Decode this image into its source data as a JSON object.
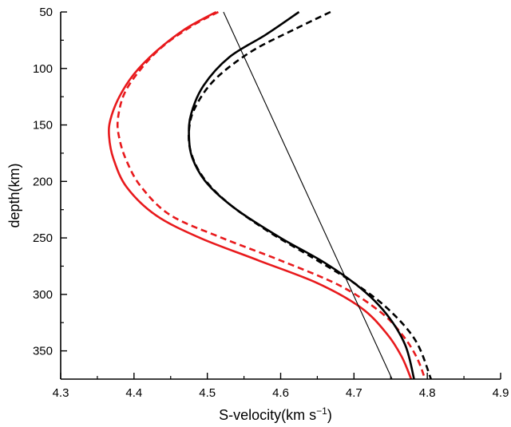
{
  "chart_data": {
    "type": "line",
    "xlabel": "S-velocity(km s",
    "xlabel_sup": "−1",
    "xlabel_end": ")",
    "ylabel": "depth(km)",
    "xlim": [
      4.3,
      4.9
    ],
    "ylim": [
      50,
      375
    ],
    "y_inverted": true,
    "grid": false,
    "x_ticks": [
      4.3,
      4.4,
      4.5,
      4.6,
      4.7,
      4.8,
      4.9
    ],
    "x_tick_labels": [
      "4.3",
      "4.4",
      "4.5",
      "4.6",
      "4.7",
      "4.8",
      "4.9"
    ],
    "y_ticks": [
      50,
      100,
      150,
      200,
      250,
      300,
      350
    ],
    "y_tick_labels": [
      "50",
      "100",
      "150",
      "200",
      "250",
      "300",
      "350"
    ],
    "series": [
      {
        "color": "#e8191c",
        "style": "solid",
        "width": 2.6,
        "points": [
          [
            4.512,
            50
          ],
          [
            4.47,
            65
          ],
          [
            4.43,
            85
          ],
          [
            4.4,
            105
          ],
          [
            4.38,
            125
          ],
          [
            4.368,
            145
          ],
          [
            4.366,
            160
          ],
          [
            4.372,
            180
          ],
          [
            4.39,
            205
          ],
          [
            4.43,
            230
          ],
          [
            4.49,
            250
          ],
          [
            4.57,
            270
          ],
          [
            4.65,
            290
          ],
          [
            4.71,
            312
          ],
          [
            4.745,
            335
          ],
          [
            4.765,
            355
          ],
          [
            4.778,
            375
          ]
        ]
      },
      {
        "color": "#e8191c",
        "style": "dashed",
        "width": 2.6,
        "points": [
          [
            4.515,
            50
          ],
          [
            4.48,
            62
          ],
          [
            4.44,
            80
          ],
          [
            4.41,
            100
          ],
          [
            4.387,
            122
          ],
          [
            4.378,
            145
          ],
          [
            4.38,
            162
          ],
          [
            4.39,
            182
          ],
          [
            4.41,
            205
          ],
          [
            4.45,
            230
          ],
          [
            4.52,
            250
          ],
          [
            4.6,
            270
          ],
          [
            4.68,
            292
          ],
          [
            4.735,
            315
          ],
          [
            4.765,
            335
          ],
          [
            4.785,
            355
          ],
          [
            4.797,
            375
          ]
        ]
      },
      {
        "color": "#000000",
        "style": "solid",
        "width": 2.6,
        "points": [
          [
            4.625,
            50
          ],
          [
            4.58,
            70
          ],
          [
            4.53,
            90
          ],
          [
            4.495,
            115
          ],
          [
            4.478,
            140
          ],
          [
            4.475,
            160
          ],
          [
            4.48,
            180
          ],
          [
            4.5,
            202
          ],
          [
            4.54,
            225
          ],
          [
            4.6,
            250
          ],
          [
            4.66,
            272
          ],
          [
            4.71,
            295
          ],
          [
            4.745,
            318
          ],
          [
            4.77,
            345
          ],
          [
            4.782,
            375
          ]
        ]
      },
      {
        "color": "#000000",
        "style": "dashed",
        "width": 2.6,
        "points": [
          [
            4.668,
            50
          ],
          [
            4.62,
            65
          ],
          [
            4.56,
            85
          ],
          [
            4.51,
            110
          ],
          [
            4.483,
            135
          ],
          [
            4.475,
            155
          ],
          [
            4.478,
            175
          ],
          [
            4.495,
            197
          ],
          [
            4.53,
            220
          ],
          [
            4.585,
            245
          ],
          [
            4.645,
            268
          ],
          [
            4.705,
            292
          ],
          [
            4.75,
            315
          ],
          [
            4.785,
            342
          ],
          [
            4.805,
            375
          ]
        ]
      },
      {
        "color": "#000000",
        "style": "solid",
        "width": 1.1,
        "points": [
          [
            4.522,
            50
          ],
          [
            4.752,
            375
          ]
        ]
      }
    ]
  }
}
